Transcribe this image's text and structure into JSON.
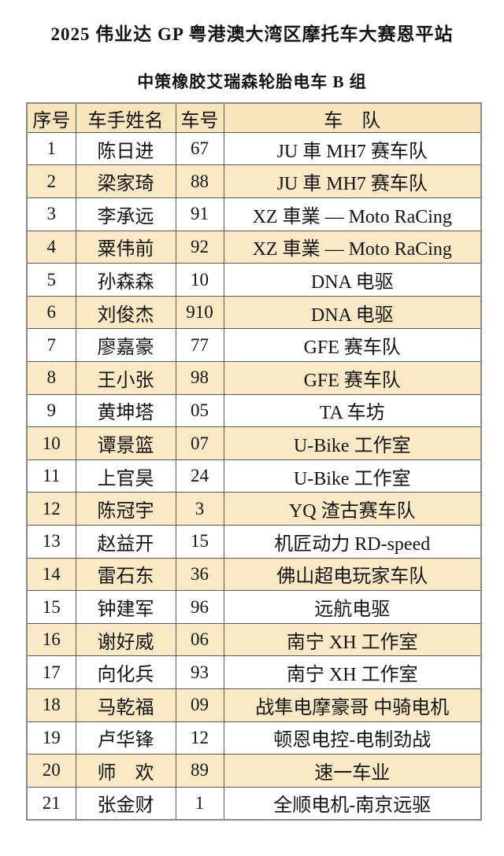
{
  "page": {
    "title": "2025 伟业达 GP 粤港澳大湾区摩托车大赛恩平站",
    "subtitle": "中策橡胶艾瑞森轮胎电车 B 组"
  },
  "table": {
    "headers": {
      "index": "序号",
      "rider_name": "车手姓名",
      "bike_number": "车号",
      "team": "车　队"
    },
    "rows": [
      {
        "no": "1",
        "name": "陈日进",
        "number": "67",
        "team": "JU 車 MH7 赛车队"
      },
      {
        "no": "2",
        "name": "梁家琦",
        "number": "88",
        "team": "JU 車 MH7 赛车队"
      },
      {
        "no": "3",
        "name": "李承远",
        "number": "91",
        "team": "XZ 車業 — Moto RaCing"
      },
      {
        "no": "4",
        "name": "粟伟前",
        "number": "92",
        "team": "XZ 車業 — Moto RaCing"
      },
      {
        "no": "5",
        "name": "孙森森",
        "number": "10",
        "team": "DNA 电驱"
      },
      {
        "no": "6",
        "name": "刘俊杰",
        "number": "910",
        "team": "DNA 电驱"
      },
      {
        "no": "7",
        "name": "廖嘉豪",
        "number": "77",
        "team": "GFE 赛车队"
      },
      {
        "no": "8",
        "name": "王小张",
        "number": "98",
        "team": "GFE 赛车队"
      },
      {
        "no": "9",
        "name": "黄坤塔",
        "number": "05",
        "team": "TA 车坊"
      },
      {
        "no": "10",
        "name": "谭景篮",
        "number": "07",
        "team": "U-Bike 工作室"
      },
      {
        "no": "11",
        "name": "上官昊",
        "number": "24",
        "team": "U-Bike 工作室"
      },
      {
        "no": "12",
        "name": "陈冠宇",
        "number": "3",
        "team": "YQ 渣古赛车队"
      },
      {
        "no": "13",
        "name": "赵益开",
        "number": "15",
        "team": "机匠动力 RD-speed"
      },
      {
        "no": "14",
        "name": "雷石东",
        "number": "36",
        "team": "佛山超电玩家车队"
      },
      {
        "no": "15",
        "name": "钟建军",
        "number": "96",
        "team": "远航电驱"
      },
      {
        "no": "16",
        "name": "谢好威",
        "number": "06",
        "team": "南宁 XH 工作室"
      },
      {
        "no": "17",
        "name": "向化兵",
        "number": "93",
        "team": "南宁 XH 工作室"
      },
      {
        "no": "18",
        "name": "马乾福",
        "number": "09",
        "team": "战隼电摩豪哥 中骑电机"
      },
      {
        "no": "19",
        "name": "卢华锋",
        "number": "12",
        "team": "顿恩电控-电制劲战"
      },
      {
        "no": "20",
        "name": "师　欢",
        "number": "89",
        "team": "速一车业"
      },
      {
        "no": "21",
        "name": "张金财",
        "number": "1",
        "team": "全顺电机-南京远驱"
      }
    ]
  },
  "colors": {
    "highlight_row": "#FAE9C4",
    "header_row": "#F9E5BB",
    "grid_border": "#5a5a58",
    "outer_border": "#8a8a88",
    "text": "#141414",
    "background": "#ffffff"
  }
}
